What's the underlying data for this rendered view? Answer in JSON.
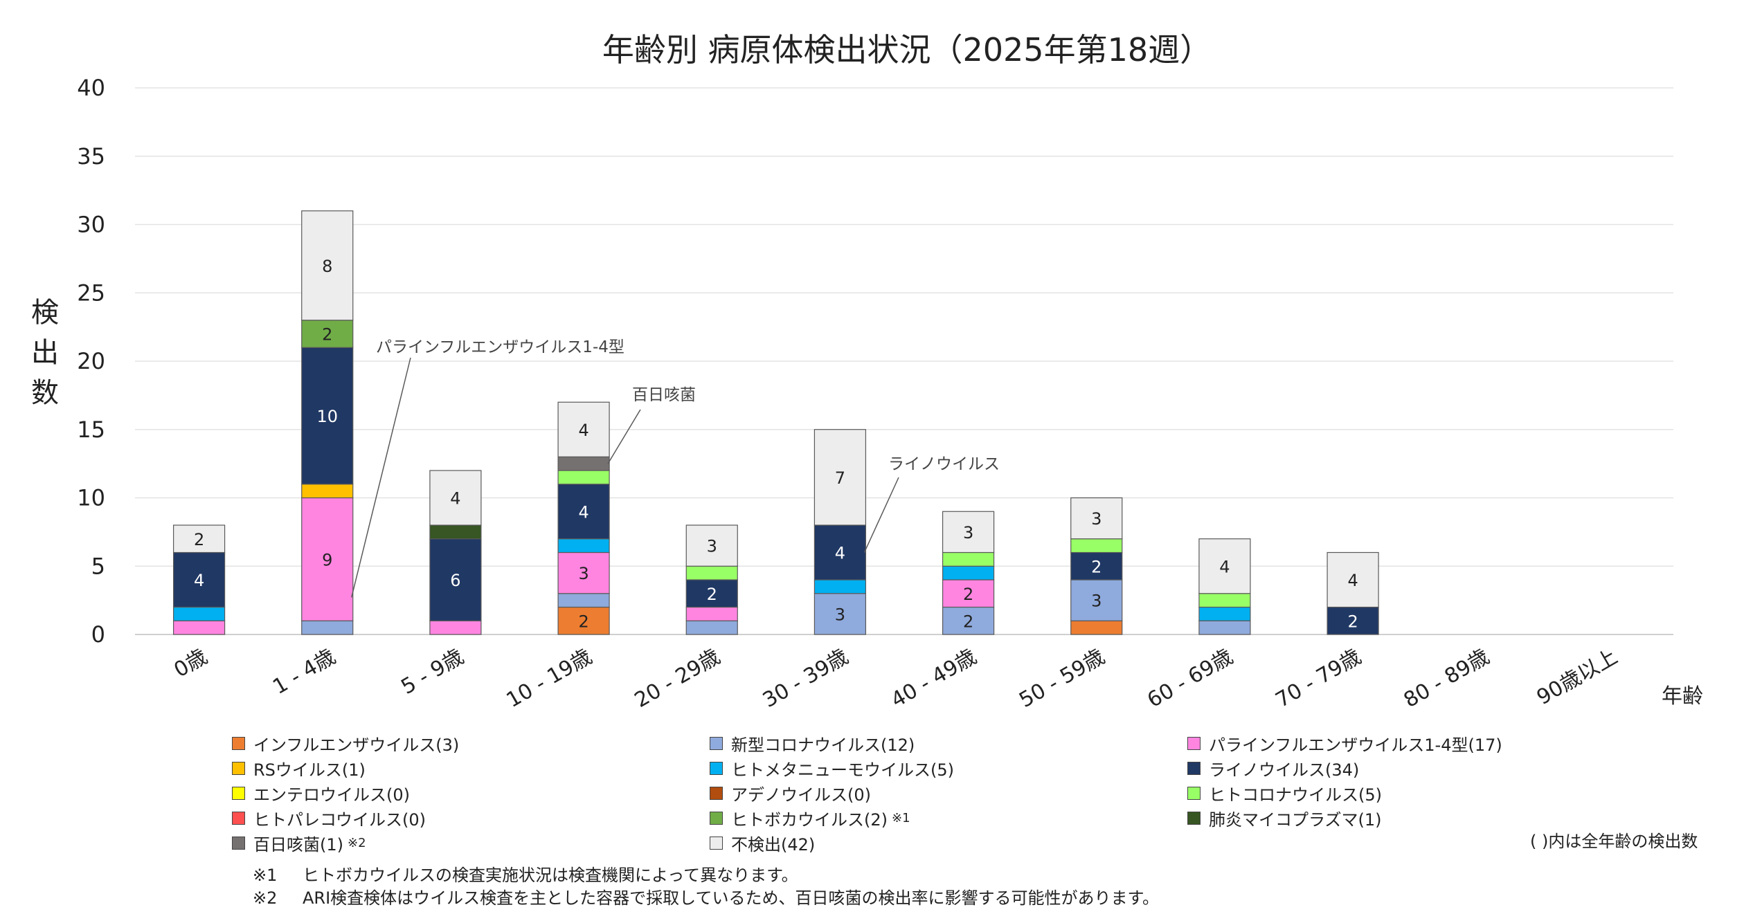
{
  "chart_data": {
    "type": "bar",
    "stacked": true,
    "title": "年齢別 病原体検出状況（2025年第18週）",
    "ylabel": "検出数",
    "xlabel": "年齢",
    "ylim": [
      0,
      40
    ],
    "yticks": [
      0,
      5,
      10,
      15,
      20,
      25,
      30,
      35,
      40
    ],
    "grid": true,
    "legend_position": "bottom",
    "categories": [
      "0歳",
      "1 - 4歳",
      "5 - 9歳",
      "10 - 19歳",
      "20 - 29歳",
      "30 - 39歳",
      "40 - 49歳",
      "50 - 59歳",
      "60 - 69歳",
      "70 - 79歳",
      "80 - 89歳",
      "90歳以上"
    ],
    "series": [
      {
        "name": "インフルエンザウイルス(3)",
        "color": "#ed7d31",
        "values": [
          0,
          0,
          0,
          2,
          0,
          0,
          0,
          1,
          0,
          0,
          0,
          0
        ]
      },
      {
        "name": "新型コロナウイルス(12)",
        "color": "#8faadc",
        "values": [
          0,
          1,
          0,
          1,
          1,
          3,
          2,
          3,
          1,
          0,
          0,
          0
        ]
      },
      {
        "name": "パラインフルエンザウイルス1-4型(17)",
        "color": "#ff85e0",
        "values": [
          1,
          9,
          1,
          3,
          1,
          0,
          2,
          0,
          0,
          0,
          0,
          0
        ]
      },
      {
        "name": "RSウイルス(1)",
        "color": "#ffc000",
        "values": [
          0,
          1,
          0,
          0,
          0,
          0,
          0,
          0,
          0,
          0,
          0,
          0
        ]
      },
      {
        "name": "ヒトメタニューモウイルス(5)",
        "color": "#00b0f0",
        "values": [
          1,
          0,
          0,
          1,
          0,
          1,
          1,
          0,
          1,
          0,
          0,
          0
        ]
      },
      {
        "name": "ライノウイルス(34)",
        "color": "#203864",
        "values": [
          4,
          10,
          6,
          4,
          2,
          4,
          0,
          2,
          0,
          2,
          0,
          0
        ]
      },
      {
        "name": "エンテロウイルス(0)",
        "color": "#ffff00",
        "values": [
          0,
          0,
          0,
          0,
          0,
          0,
          0,
          0,
          0,
          0,
          0,
          0
        ]
      },
      {
        "name": "アデノウイルス(0)",
        "color": "#b14d0e",
        "values": [
          0,
          0,
          0,
          0,
          0,
          0,
          0,
          0,
          0,
          0,
          0,
          0
        ]
      },
      {
        "name": "ヒトコロナウイルス(5)",
        "color": "#99ff66",
        "values": [
          0,
          0,
          0,
          1,
          1,
          0,
          1,
          1,
          1,
          0,
          0,
          0
        ]
      },
      {
        "name": "ヒトパレコウイルス(0)",
        "color": "#ff5050",
        "values": [
          0,
          0,
          0,
          0,
          0,
          0,
          0,
          0,
          0,
          0,
          0,
          0
        ]
      },
      {
        "name": "ヒトボカウイルス(2)",
        "color": "#70ad47",
        "values": [
          0,
          2,
          0,
          0,
          0,
          0,
          0,
          0,
          0,
          0,
          0,
          0
        ],
        "note": "※1"
      },
      {
        "name": "肺炎マイコプラズマ(1)",
        "color": "#375623",
        "values": [
          0,
          0,
          1,
          0,
          0,
          0,
          0,
          0,
          0,
          0,
          0,
          0
        ]
      },
      {
        "name": "百日咳菌(1)",
        "color": "#767171",
        "values": [
          0,
          0,
          0,
          1,
          0,
          0,
          0,
          0,
          0,
          0,
          0,
          0
        ],
        "note": "※2"
      },
      {
        "name": "不検出(42)",
        "color": "#ededed",
        "values": [
          2,
          8,
          4,
          4,
          3,
          7,
          3,
          3,
          4,
          4,
          0,
          0
        ]
      }
    ],
    "data_labels": [
      {
        "category": 0,
        "series": 5,
        "text": "4"
      },
      {
        "category": 0,
        "series": 13,
        "text": "2"
      },
      {
        "category": 1,
        "series": 2,
        "text": "9"
      },
      {
        "category": 1,
        "series": 5,
        "text": "10"
      },
      {
        "category": 1,
        "series": 10,
        "text": "2"
      },
      {
        "category": 1,
        "series": 13,
        "text": "8"
      },
      {
        "category": 2,
        "series": 5,
        "text": "6"
      },
      {
        "category": 2,
        "series": 13,
        "text": "4"
      },
      {
        "category": 3,
        "series": 0,
        "text": "2"
      },
      {
        "category": 3,
        "series": 2,
        "text": "3"
      },
      {
        "category": 3,
        "series": 5,
        "text": "4"
      },
      {
        "category": 3,
        "series": 13,
        "text": "4"
      },
      {
        "category": 4,
        "series": 5,
        "text": "2"
      },
      {
        "category": 4,
        "series": 13,
        "text": "3"
      },
      {
        "category": 5,
        "series": 1,
        "text": "3"
      },
      {
        "category": 5,
        "series": 5,
        "text": "4"
      },
      {
        "category": 5,
        "series": 13,
        "text": "7"
      },
      {
        "category": 6,
        "series": 1,
        "text": "2"
      },
      {
        "category": 6,
        "series": 2,
        "text": "2"
      },
      {
        "category": 6,
        "series": 13,
        "text": "3"
      },
      {
        "category": 7,
        "series": 1,
        "text": "3"
      },
      {
        "category": 7,
        "series": 5,
        "text": "2"
      },
      {
        "category": 7,
        "series": 13,
        "text": "3"
      },
      {
        "category": 8,
        "series": 13,
        "text": "4"
      },
      {
        "category": 9,
        "series": 5,
        "text": "2"
      },
      {
        "category": 9,
        "series": 13,
        "text": "4"
      }
    ],
    "annotations": [
      {
        "text": "パラインフルエンザウイルス1-4型",
        "target_category": 1,
        "target_series": 2
      },
      {
        "text": "百日咳菌",
        "target_category": 3,
        "target_series": 12
      },
      {
        "text": "ライノウイルス",
        "target_category": 5,
        "target_series": 5
      }
    ]
  },
  "legend_footnote": "( )内は全年齢の検出数",
  "notes": [
    {
      "mark": "※1",
      "text": "ヒトボカウイルスの検査実施状況は検査機関によって異なります。"
    },
    {
      "mark": "※2",
      "text": "ARI検査検体はウイルス検査を主とした容器で採取しているため、百日咳菌の検出率に影響する可能性があります。"
    }
  ]
}
